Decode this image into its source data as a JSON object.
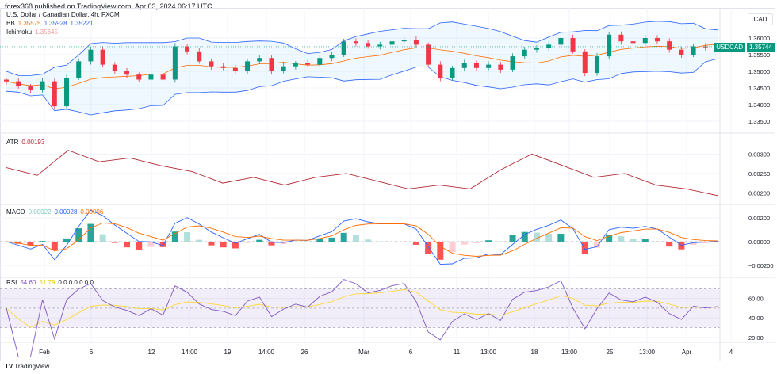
{
  "header": {
    "published": "forex368 published on TradingView.com, Apr 03, 2024 06:17 UTC"
  },
  "legend": {
    "symbol": "U.S. Dollar / Canadian Dollar, 4h, FXCM",
    "bb_label": "BB",
    "bb_basis": "1.35575",
    "bb_upper": "1.35928",
    "bb_lower": "1.35221",
    "ichimoku_label": "Ichimoku",
    "ichimoku_value": "1.35645",
    "atr_label": "ATR",
    "atr_value": "0.00193",
    "macd_label": "MACD",
    "macd_hist": "0.00022",
    "macd_value": "0.00028",
    "macd_signal": "0.00006",
    "rsi_label": "RSI",
    "rsi_value": "54.60",
    "rsi_ma": "51.79",
    "rsi_extra": "0 0 0 0 0 0 0"
  },
  "currency": "CAD",
  "price_tag": {
    "symbol": "USDCAD",
    "price": "1.35744"
  },
  "footer": {
    "brand": "TradingView",
    "logo": "TV"
  },
  "colors": {
    "up": "#089981",
    "down": "#f23645",
    "bb": "#2962ff",
    "basis": "#ff6d00",
    "atr": "#b22833",
    "rsi": "#7e57c2",
    "rsi_ma": "#fdd835",
    "macd_fast": "#2962ff",
    "macd_signal": "#ff6d00"
  },
  "chart_data": [
    {
      "type": "candlestick",
      "pane": "price",
      "ylim": [
        1.332,
        1.364
      ],
      "yticks": [
        "1.36000",
        "1.35500",
        "1.35000",
        "1.34500",
        "1.34000",
        "1.33500"
      ],
      "close": [
        1.347,
        1.3455,
        1.3445,
        1.347,
        1.3395,
        1.348,
        1.353,
        1.3565,
        1.352,
        1.35,
        1.349,
        1.3475,
        1.349,
        1.3475,
        1.3575,
        1.356,
        1.353,
        1.3515,
        1.351,
        1.35,
        1.353,
        1.354,
        1.35,
        1.3515,
        1.3525,
        1.352,
        1.354,
        1.355,
        1.359,
        1.3585,
        1.3575,
        1.358,
        1.359,
        1.3595,
        1.358,
        1.352,
        1.348,
        1.351,
        1.3525,
        1.351,
        1.352,
        1.3505,
        1.3545,
        1.3565,
        1.357,
        1.358,
        1.36,
        1.356,
        1.3495,
        1.3545,
        1.361,
        1.359,
        1.3585,
        1.36,
        1.359,
        1.3565,
        1.355,
        1.3575,
        1.3572,
        1.3574
      ]
    },
    {
      "type": "line",
      "pane": "atr",
      "ylim": [
        0.0017,
        0.0035
      ],
      "yticks": [
        "0.00300",
        "0.00250",
        "0.00200"
      ],
      "values": [
        0.00265,
        0.00245,
        0.0031,
        0.0028,
        0.0029,
        0.0027,
        0.00255,
        0.00225,
        0.0024,
        0.0022,
        0.0024,
        0.0025,
        0.0023,
        0.0021,
        0.0022,
        0.0021,
        0.0026,
        0.003,
        0.0027,
        0.0024,
        0.0025,
        0.0022,
        0.0021,
        0.00193
      ]
    },
    {
      "type": "macd",
      "pane": "macd",
      "ylim": [
        -0.003,
        0.003
      ],
      "yticks": [
        "0.00200",
        "0.00000",
        "−0.00200"
      ]
    },
    {
      "type": "line",
      "pane": "rsi",
      "ylim": [
        15,
        80
      ],
      "yticks": [
        "60.00",
        "40.00",
        "20.00"
      ],
      "bands": [
        30,
        50,
        70
      ]
    }
  ],
  "xaxis": {
    "labels": [
      "Feb",
      "6",
      "12",
      "14:00",
      "19",
      "14:00",
      "26",
      "Mar",
      "6",
      "11",
      "13:00",
      "18",
      "13:00",
      "25",
      "13:00",
      "Apr",
      "4"
    ]
  }
}
